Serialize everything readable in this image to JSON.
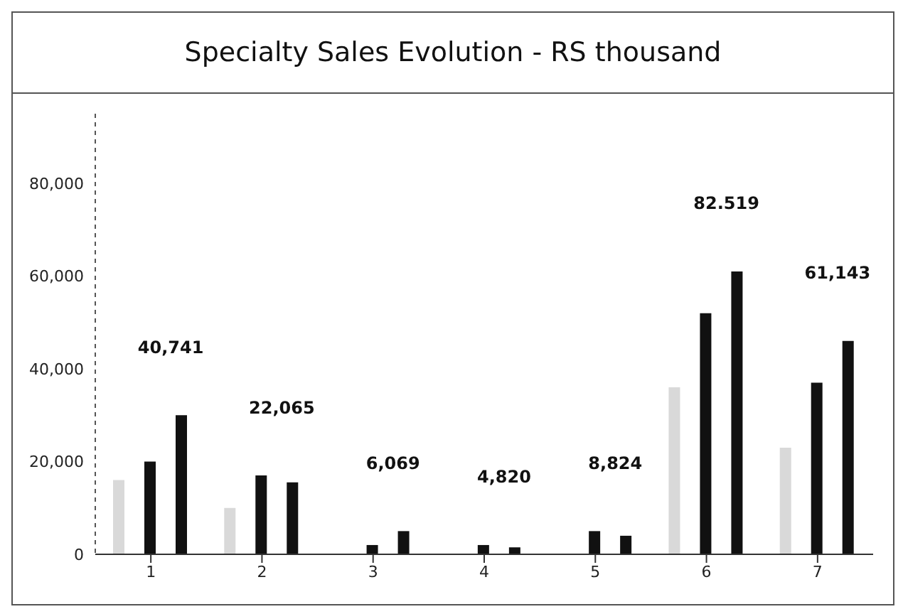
{
  "chart_data": {
    "type": "bar",
    "title": "Specialty Sales Evolution - RS thousand",
    "categories": [
      "1",
      "2",
      "3",
      "4",
      "5",
      "6",
      "7"
    ],
    "series": [
      {
        "color": "#d9d9d9",
        "values": [
          16000,
          10000,
          null,
          null,
          null,
          36000,
          23000
        ]
      },
      {
        "color": "#111111",
        "values": [
          20000,
          17000,
          2000,
          2000,
          5000,
          52000,
          37000
        ]
      },
      {
        "color": "#111111",
        "values": [
          30000,
          15500,
          5000,
          1500,
          4000,
          61000,
          46000
        ]
      }
    ],
    "ylim": [
      0,
      95000
    ],
    "yticks": [
      {
        "value": 0,
        "label": "0"
      },
      {
        "value": 20000,
        "label": "20,000"
      },
      {
        "value": 40000,
        "label": "40,000"
      },
      {
        "value": 60000,
        "label": "60,000"
      },
      {
        "value": 80000,
        "label": "80,000"
      }
    ],
    "annotations": [
      "40,741",
      "22,065",
      "6,069",
      "4,820",
      "8,824",
      "82.519",
      "61,143"
    ],
    "grid": false,
    "legend": false
  }
}
